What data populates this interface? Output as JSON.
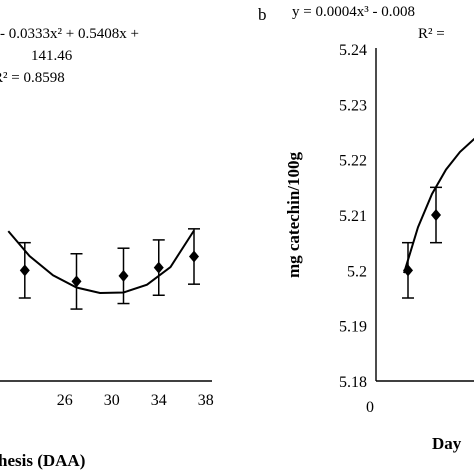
{
  "colors": {
    "ink": "#000000",
    "background": "#ffffff"
  },
  "chart_data": [
    {
      "type": "scatter",
      "panel_label": "",
      "equation_lines": [
        "- 0.0333x² + 0.5408x +",
        "141.46",
        "R² = 0.8598"
      ],
      "xlabel": "hesis (DAA)",
      "ylabel": "",
      "x_ticks": [
        26,
        30,
        34,
        38
      ],
      "x_range": [
        21,
        38.5
      ],
      "y_range": [
        5.18,
        5.24
      ],
      "points": [
        {
          "x": 22.6,
          "y": 5.2,
          "err": 0.005
        },
        {
          "x": 27,
          "y": 5.198,
          "err": 0.005
        },
        {
          "x": 31,
          "y": 5.199,
          "err": 0.005
        },
        {
          "x": 34,
          "y": 5.2005,
          "err": 0.005
        },
        {
          "x": 37,
          "y": 5.2025,
          "err": 0.005
        }
      ],
      "trend": {
        "type": "polynomial",
        "samples_x": [
          21.2,
          23,
          25,
          27,
          29,
          31,
          33,
          35,
          37
        ],
        "samples_y": [
          5.2071,
          5.2026,
          5.1991,
          5.1969,
          5.1959,
          5.196,
          5.1974,
          5.2006,
          5.2072
        ]
      },
      "grid": false
    },
    {
      "type": "scatter",
      "panel_label": "b",
      "equation_lines": [
        "y = 0.0004x³ - 0.008",
        "R² ="
      ],
      "xlabel": "Day",
      "ylabel": "mg catechin/100g",
      "y_ticks": [
        "5.24",
        "5.23",
        "5.22",
        "5.21",
        "5.2",
        "5.19",
        "5.18"
      ],
      "x_ticks": [
        0
      ],
      "x_range": [
        0,
        8
      ],
      "y_range": [
        5.18,
        5.24
      ],
      "points": [
        {
          "x": 1,
          "y": 5.2,
          "err": 0.005
        },
        {
          "x": 2,
          "y": 5.21,
          "err": 0.005
        }
      ],
      "trend": {
        "type": "polynomial",
        "samples_x": [
          1,
          1.5,
          2,
          2.5,
          3,
          3.5,
          3.6
        ],
        "samples_y": [
          5.1995,
          5.2078,
          5.2138,
          5.2182,
          5.2214,
          5.2237,
          5.2241
        ]
      },
      "grid": false
    }
  ]
}
